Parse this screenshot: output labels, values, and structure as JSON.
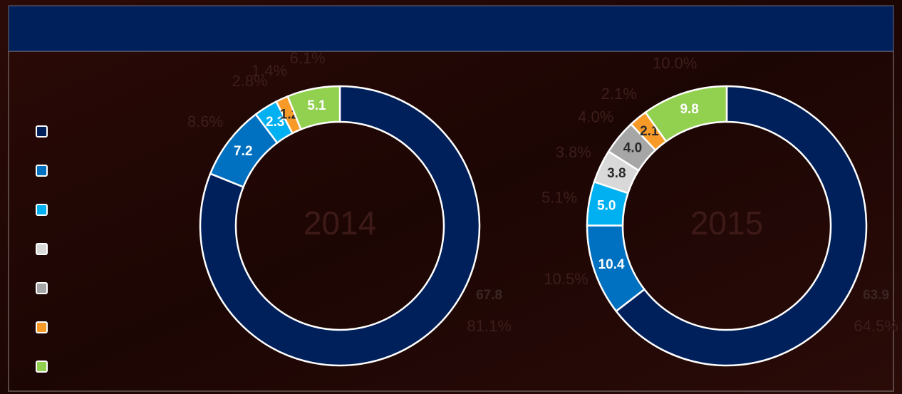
{
  "legend": {
    "colors": [
      "#00205b",
      "#0070c0",
      "#00b0f0",
      "#d9d9d9",
      "#a6a6a6",
      "#f79a28",
      "#92d050"
    ]
  },
  "chart_data": [
    {
      "type": "pie",
      "title": "2014",
      "values": [
        67.8,
        7.2,
        2.3,
        1.2,
        5.1
      ],
      "colors": [
        "#00205b",
        "#0070c0",
        "#00b0f0",
        "#f79a28",
        "#92d050"
      ],
      "label_colors": [
        "#3a2624",
        "#ffffff",
        "#ffffff",
        "#2a2a2a",
        "#ffffff"
      ],
      "percents": [
        81.1,
        8.6,
        2.8,
        1.4,
        6.1
      ],
      "percent_labels": [
        "81.1%",
        "8.6%",
        "2.8%",
        "1.4%",
        "6.1%"
      ]
    },
    {
      "type": "pie",
      "title": "2015",
      "values": [
        63.9,
        10.4,
        5.0,
        3.8,
        4.0,
        2.1,
        9.8
      ],
      "value_labels": [
        "63.9",
        "10.4",
        "5.0",
        "3.8",
        "4.0",
        "2.1",
        "9.8"
      ],
      "colors": [
        "#00205b",
        "#0070c0",
        "#00b0f0",
        "#d9d9d9",
        "#a6a6a6",
        "#f79a28",
        "#92d050"
      ],
      "label_colors": [
        "#3a2624",
        "#ffffff",
        "#ffffff",
        "#2a2a2a",
        "#2a2a2a",
        "#2a2a2a",
        "#ffffff"
      ],
      "percents": [
        64.5,
        10.5,
        5.1,
        3.8,
        4.0,
        2.1,
        10.0
      ],
      "percent_labels": [
        "64.5%",
        "10.5%",
        "5.1%",
        "3.8%",
        "4.0%",
        "2.1%",
        "10.0%"
      ]
    }
  ]
}
